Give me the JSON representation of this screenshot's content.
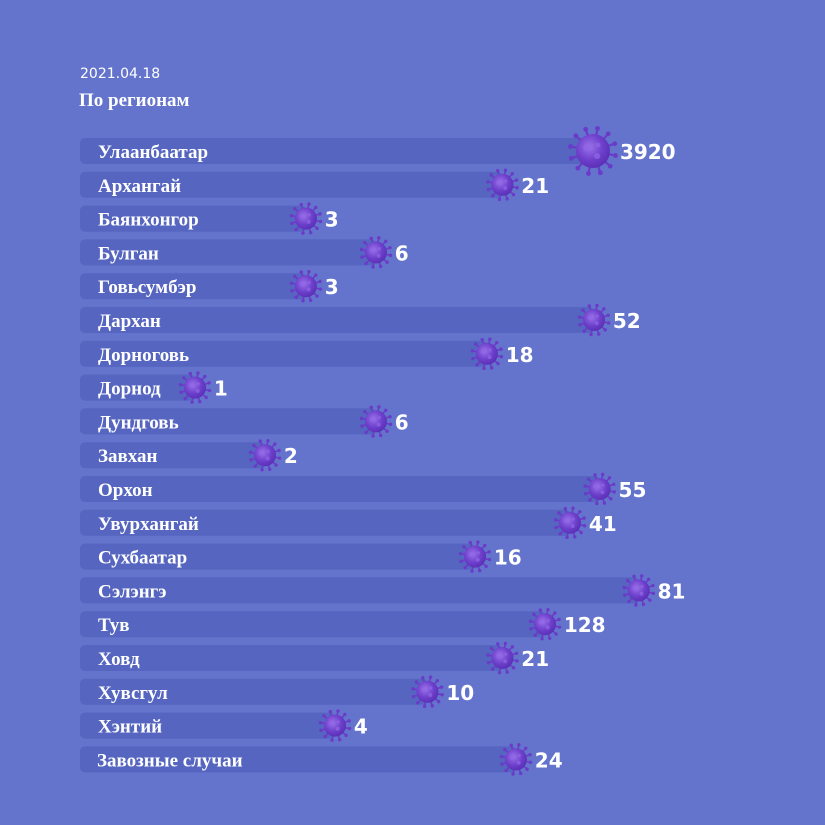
{
  "header": {
    "date": "2021.04.18",
    "title": "По регионам"
  },
  "colors": {
    "background": "#6474cc",
    "bar": "#5565c0",
    "virus": "#6a3bc9",
    "virus_highlight": "#9266e6",
    "text": "#ffffff"
  },
  "chart_data": {
    "type": "bar",
    "orientation": "horizontal",
    "title": "По регионам",
    "categories": [
      "Улаанбаатар",
      "Архангай",
      "Баянхонгор",
      "Булган",
      "Говьсумбэр",
      "Дархан",
      "Дорноговь",
      "Дорнод",
      "Дундговь",
      "Завхан",
      "Орхон",
      "Увурхангай",
      "Сухбаатар",
      "Сэлэнгэ",
      "Тув",
      "Ховд",
      "Хувсгул",
      "Хэнтий",
      "Завозные случаи"
    ],
    "values": [
      3920,
      21,
      3,
      6,
      3,
      52,
      18,
      1,
      6,
      2,
      55,
      41,
      16,
      81,
      128,
      21,
      10,
      4,
      24
    ],
    "marker_icon": "virus-icon",
    "grid": false,
    "legend": "none"
  }
}
